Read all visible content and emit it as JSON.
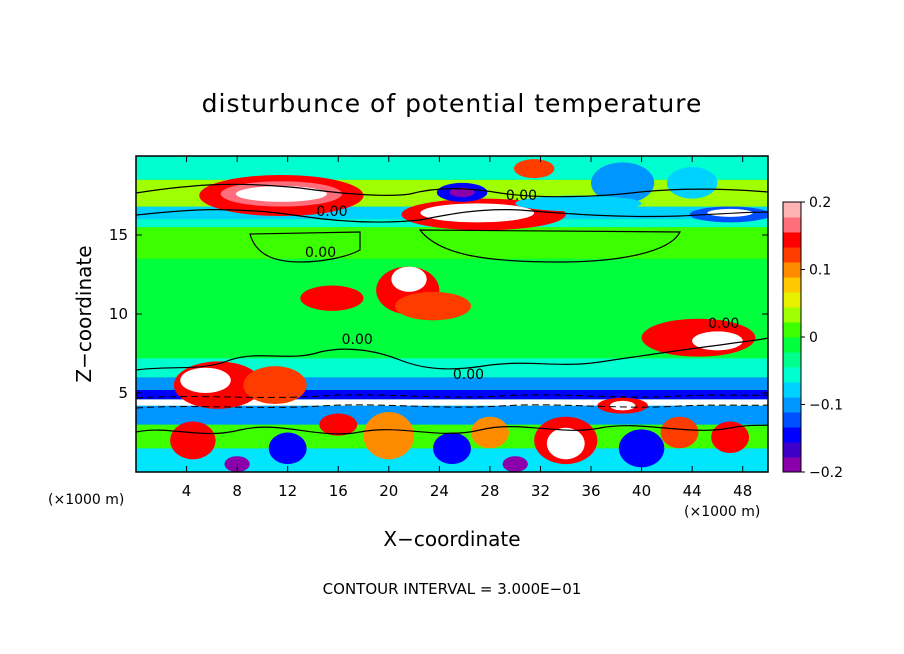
{
  "chart_data": {
    "type": "heatmap",
    "title": "disturbunce of potential temperature",
    "xlabel": "X−coordinate",
    "ylabel": "Z−coordinate",
    "x_unit_left": "(×1000 m)",
    "x_unit_right": "(×1000 m)",
    "xlim": [
      0,
      50
    ],
    "ylim": [
      0,
      20
    ],
    "x_ticks": [
      4,
      8,
      12,
      16,
      20,
      24,
      28,
      32,
      36,
      40,
      44,
      48
    ],
    "y_ticks": [
      5,
      10,
      15
    ],
    "footer": "CONTOUR INTERVAL = 3.000E−01",
    "contour_labels": [
      {
        "text": "0.00",
        "x": 15.5,
        "y": 16.2
      },
      {
        "text": "0.00",
        "x": 30.5,
        "y": 17.2
      },
      {
        "text": "0.00",
        "x": 14.6,
        "y": 13.6
      },
      {
        "text": "0.00",
        "x": 17.5,
        "y": 8.1
      },
      {
        "text": "0.00",
        "x": 26.3,
        "y": 5.9
      },
      {
        "text": "0.00",
        "x": 46.5,
        "y": 9.1
      }
    ],
    "colorbar": {
      "min": -0.2,
      "max": 0.2,
      "ticks": [
        {
          "value": 0.2,
          "label": "0.2"
        },
        {
          "value": 0.1,
          "label": "0.1"
        },
        {
          "value": 0,
          "label": "0"
        },
        {
          "value": -0.1,
          "label": "−0.1"
        },
        {
          "value": -0.2,
          "label": "−0.2"
        }
      ],
      "colors": [
        "#8a00aa",
        "#3c00c8",
        "#0000ff",
        "#0050ff",
        "#0096ff",
        "#00d2ff",
        "#00ffd0",
        "#00ff8c",
        "#00ff3c",
        "#3cff00",
        "#a0ff00",
        "#e6f000",
        "#ffc800",
        "#ff8c00",
        "#ff3c00",
        "#ff0000",
        "#ff6e7a",
        "#ffb4b4"
      ]
    },
    "field": {
      "background": "#00ff3c",
      "bands": [
        {
          "z0": 0,
          "z1": 1.5,
          "color": "#00e6ff"
        },
        {
          "z0": 1.5,
          "z1": 3.0,
          "color": "#3cff00"
        },
        {
          "z0": 3.0,
          "z1": 4.2,
          "color": "#0096ff"
        },
        {
          "z0": 4.2,
          "z1": 4.6,
          "color": "#ffffff"
        },
        {
          "z0": 4.6,
          "z1": 5.2,
          "color": "#0000ff"
        },
        {
          "z0": 5.2,
          "z1": 6.0,
          "color": "#0096ff"
        },
        {
          "z0": 6.0,
          "z1": 7.2,
          "color": "#00ffd0"
        },
        {
          "z0": 7.2,
          "z1": 13.5,
          "color": "#00ff3c"
        },
        {
          "z0": 13.5,
          "z1": 15.5,
          "color": "#3cff00"
        },
        {
          "z0": 15.5,
          "z1": 16.0,
          "color": "#00ffd0"
        },
        {
          "z0": 16.0,
          "z1": 16.8,
          "color": "#00d2ff"
        },
        {
          "z0": 16.8,
          "z1": 18.5,
          "color": "#a0ff00"
        },
        {
          "z0": 18.5,
          "z1": 20,
          "color": "#00ffd0"
        }
      ],
      "blobs": [
        {
          "cx": 11.5,
          "cz": 17.5,
          "rx": 6.5,
          "rz": 1.3,
          "color": "#ff0000"
        },
        {
          "cx": 11.5,
          "cz": 17.6,
          "rx": 4.8,
          "rz": 0.8,
          "color": "#ff6e7a"
        },
        {
          "cx": 11.5,
          "cz": 17.6,
          "rx": 3.6,
          "rz": 0.5,
          "color": "#ffffff"
        },
        {
          "cx": 27.5,
          "cz": 16.3,
          "rx": 6.5,
          "rz": 1.0,
          "color": "#ff0000"
        },
        {
          "cx": 27.0,
          "cz": 16.4,
          "rx": 4.5,
          "rz": 0.6,
          "color": "#ffffff"
        },
        {
          "cx": 25.8,
          "cz": 17.7,
          "rx": 2.0,
          "rz": 0.6,
          "color": "#0000ff"
        },
        {
          "cx": 25.8,
          "cz": 17.7,
          "rx": 1.0,
          "rz": 0.3,
          "color": "#8a00aa"
        },
        {
          "cx": 38.5,
          "cz": 18.3,
          "rx": 2.5,
          "rz": 1.3,
          "color": "#0096ff"
        },
        {
          "cx": 35.0,
          "cz": 17.0,
          "rx": 5.0,
          "rz": 0.5,
          "color": "#00d2ff"
        },
        {
          "cx": 31.5,
          "cz": 19.2,
          "rx": 1.6,
          "rz": 0.6,
          "color": "#ff3c00"
        },
        {
          "cx": 47.0,
          "cz": 16.3,
          "rx": 3.2,
          "rz": 0.5,
          "color": "#0050ff"
        },
        {
          "cx": 47.0,
          "cz": 16.4,
          "rx": 1.8,
          "rz": 0.25,
          "color": "#ffffff"
        },
        {
          "cx": 44.0,
          "cz": 18.3,
          "rx": 2.0,
          "rz": 1.0,
          "color": "#00d2ff"
        },
        {
          "cx": 21.5,
          "cz": 11.5,
          "rx": 2.5,
          "rz": 1.5,
          "color": "#ff0000"
        },
        {
          "cx": 21.6,
          "cz": 12.2,
          "rx": 1.4,
          "rz": 0.8,
          "color": "#ffffff"
        },
        {
          "cx": 15.5,
          "cz": 11.0,
          "rx": 2.5,
          "rz": 0.8,
          "color": "#ff0000"
        },
        {
          "cx": 23.5,
          "cz": 10.5,
          "rx": 3.0,
          "rz": 0.9,
          "color": "#ff3c00"
        },
        {
          "cx": 44.5,
          "cz": 8.5,
          "rx": 4.5,
          "rz": 1.2,
          "color": "#ff0000"
        },
        {
          "cx": 46.0,
          "cz": 8.3,
          "rx": 2.0,
          "rz": 0.6,
          "color": "#ffffff"
        },
        {
          "cx": 6.5,
          "cz": 5.5,
          "rx": 3.5,
          "rz": 1.5,
          "color": "#ff0000"
        },
        {
          "cx": 5.5,
          "cz": 5.8,
          "rx": 2.0,
          "rz": 0.8,
          "color": "#ffffff"
        },
        {
          "cx": 11.0,
          "cz": 5.5,
          "rx": 2.5,
          "rz": 1.2,
          "color": "#ff3c00"
        },
        {
          "cx": 34.0,
          "cz": 2.0,
          "rx": 2.5,
          "rz": 1.5,
          "color": "#ff0000"
        },
        {
          "cx": 34.0,
          "cz": 1.8,
          "rx": 1.5,
          "rz": 1.0,
          "color": "#ffffff"
        },
        {
          "cx": 20.0,
          "cz": 2.3,
          "rx": 2.0,
          "rz": 1.5,
          "color": "#ff8c00"
        },
        {
          "cx": 4.5,
          "cz": 2.0,
          "rx": 1.8,
          "rz": 1.2,
          "color": "#ff0000"
        },
        {
          "cx": 47.0,
          "cz": 2.2,
          "rx": 1.5,
          "rz": 1.0,
          "color": "#ff0000"
        },
        {
          "cx": 12.0,
          "cz": 1.5,
          "rx": 1.5,
          "rz": 1.0,
          "color": "#0000ff"
        },
        {
          "cx": 25.0,
          "cz": 1.5,
          "rx": 1.5,
          "rz": 1.0,
          "color": "#0000ff"
        },
        {
          "cx": 40.0,
          "cz": 1.5,
          "rx": 1.8,
          "rz": 1.2,
          "color": "#0000ff"
        },
        {
          "cx": 30.0,
          "cz": 0.5,
          "rx": 1.0,
          "rz": 0.5,
          "color": "#8a00aa"
        },
        {
          "cx": 8.0,
          "cz": 0.5,
          "rx": 1.0,
          "rz": 0.5,
          "color": "#8a00aa"
        },
        {
          "cx": 43.0,
          "cz": 2.5,
          "rx": 1.5,
          "rz": 1.0,
          "color": "#ff3c00"
        },
        {
          "cx": 28.0,
          "cz": 2.5,
          "rx": 1.5,
          "rz": 1.0,
          "color": "#ff8c00"
        },
        {
          "cx": 16.0,
          "cz": 3.0,
          "rx": 1.5,
          "rz": 0.7,
          "color": "#ff0000"
        },
        {
          "cx": 38.5,
          "cz": 4.2,
          "rx": 2.0,
          "rz": 0.5,
          "color": "#ff0000"
        },
        {
          "cx": 38.5,
          "cz": 4.2,
          "rx": 1.0,
          "rz": 0.3,
          "color": "#ffffff"
        }
      ]
    }
  }
}
